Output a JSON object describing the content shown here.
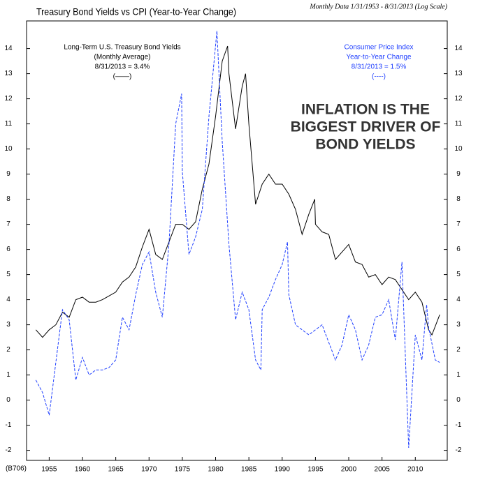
{
  "chart_data": {
    "type": "line",
    "title": "Treasury Bond Yields vs CPI (Year-to-Year Change)",
    "subtitle": "Monthly Data 1/31/1953 - 8/31/2013 (Log Scale)",
    "footnote": "(B706)",
    "bond_note": [
      "Long-Term U.S. Treasury Bond Yields",
      "(Monthly Average)",
      "8/31/2013 = 3.4%",
      "(——)"
    ],
    "cpi_note": [
      "Consumer Price Index",
      "Year-to-Year Change",
      "8/31/2013 = 1.5%",
      "(----)"
    ],
    "headline": [
      "INFLATION IS THE",
      "BIGGEST DRIVER OF",
      "BOND YIELDS"
    ],
    "xlim": [
      1951.6,
      2014.8
    ],
    "xticks": [
      1955,
      1960,
      1965,
      1970,
      1975,
      1980,
      1985,
      1990,
      1995,
      2000,
      2005,
      2010
    ],
    "ylim": [
      -2.4,
      15.1
    ],
    "yticks": [
      -2,
      -1,
      0,
      1,
      2,
      3,
      4,
      5,
      6,
      7,
      8,
      9,
      10,
      11,
      12,
      13,
      14
    ],
    "series": [
      {
        "name": "Long-Term U.S. Treasury Bond Yields",
        "color": "#000000",
        "style": "solid",
        "x": [
          1953,
          1954,
          1955,
          1956,
          1957,
          1958,
          1959,
          1960,
          1961,
          1962,
          1963,
          1964,
          1965,
          1966,
          1967,
          1968,
          1969,
          1970,
          1971,
          1972,
          1973,
          1974,
          1975,
          1976,
          1977,
          1978,
          1979,
          1980,
          1981,
          1981.8,
          1982,
          1983,
          1984,
          1984.5,
          1985,
          1986,
          1987,
          1988,
          1989,
          1990,
          1991,
          1992,
          1993,
          1994,
          1994.9,
          1995,
          1996,
          1997,
          1998,
          1999,
          2000,
          2001,
          2002,
          2003,
          2004,
          2005,
          2006,
          2007,
          2008,
          2009,
          2010,
          2011,
          2012,
          2012.5,
          2013.67
        ],
        "values": [
          2.8,
          2.5,
          2.8,
          3.0,
          3.5,
          3.3,
          4.0,
          4.1,
          3.9,
          3.9,
          4.0,
          4.15,
          4.3,
          4.7,
          4.9,
          5.3,
          6.1,
          6.8,
          5.8,
          5.6,
          6.3,
          7.0,
          7.0,
          6.8,
          7.1,
          8.4,
          9.4,
          11.3,
          13.5,
          14.1,
          13.0,
          10.8,
          12.5,
          13.0,
          11.0,
          7.8,
          8.6,
          9.0,
          8.6,
          8.6,
          8.2,
          7.6,
          6.6,
          7.4,
          8.0,
          7.0,
          6.7,
          6.6,
          5.6,
          5.9,
          6.2,
          5.5,
          5.4,
          4.9,
          5.0,
          4.6,
          4.9,
          4.8,
          4.4,
          4.0,
          4.3,
          3.9,
          2.8,
          2.6,
          3.4
        ]
      },
      {
        "name": "Consumer Price Index",
        "color": "#1f3fff",
        "style": "dashed",
        "x": [
          1953,
          1954,
          1955,
          1956,
          1957,
          1958,
          1959,
          1960,
          1961,
          1962,
          1963,
          1964,
          1965,
          1966,
          1967,
          1968,
          1969,
          1970,
          1971,
          1972,
          1973,
          1974,
          1974.9,
          1975,
          1976,
          1977,
          1978,
          1979,
          1980.2,
          1981,
          1982,
          1983,
          1984,
          1985,
          1986,
          1986.8,
          1987,
          1988,
          1989,
          1990,
          1990.8,
          1991,
          1992,
          1993,
          1994,
          1995,
          1996,
          1997,
          1998,
          1999,
          2000,
          2001,
          2002,
          2003,
          2004,
          2005,
          2006,
          2007,
          2008,
          2009,
          2010,
          2011,
          2011.7,
          2012,
          2013,
          2013.67
        ],
        "values": [
          0.8,
          0.3,
          -0.6,
          1.5,
          3.6,
          3.2,
          0.8,
          1.7,
          1.0,
          1.2,
          1.2,
          1.3,
          1.6,
          3.3,
          2.8,
          4.2,
          5.4,
          5.9,
          4.3,
          3.3,
          6.2,
          11.0,
          12.2,
          9.1,
          5.8,
          6.5,
          7.6,
          11.3,
          14.7,
          10.3,
          6.2,
          3.2,
          4.3,
          3.6,
          1.6,
          1.2,
          3.6,
          4.1,
          4.8,
          5.4,
          6.3,
          4.2,
          3.0,
          2.8,
          2.6,
          2.8,
          3.0,
          2.3,
          1.6,
          2.2,
          3.4,
          2.8,
          1.6,
          2.2,
          3.3,
          3.4,
          4.0,
          2.4,
          5.5,
          -1.9,
          2.6,
          1.6,
          3.8,
          2.9,
          1.6,
          1.5
        ]
      }
    ]
  }
}
